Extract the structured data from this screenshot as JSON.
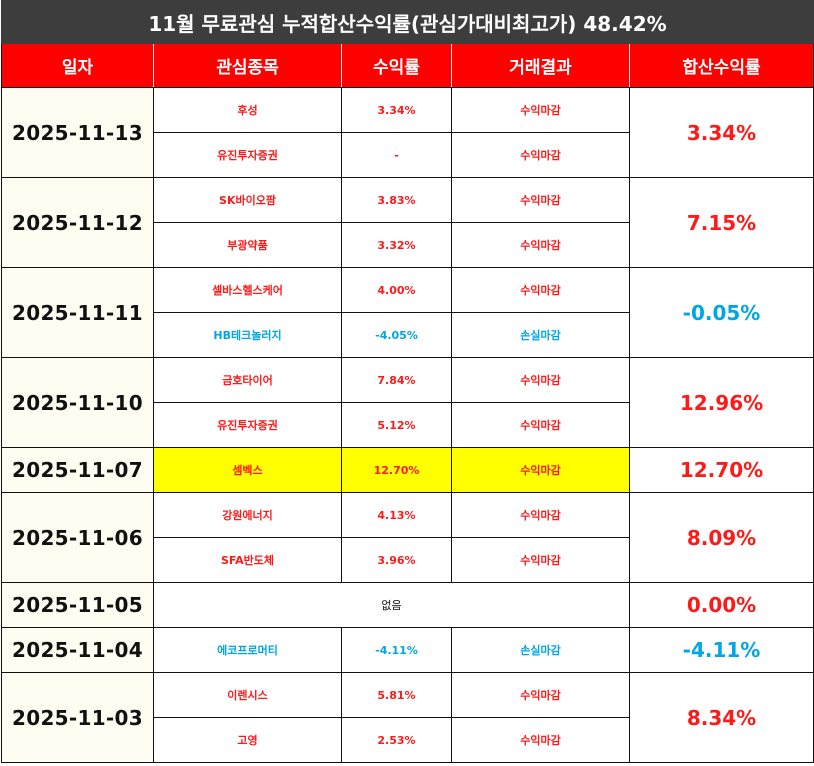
{
  "title": "11월 무료관심 누적합산수익률(관심가대비최고가) 48.42%",
  "headers": [
    "일자",
    "관심종목",
    "수익률",
    "거래결과",
    "합산수익률"
  ],
  "colors": {
    "profit": "#ff1a1a",
    "loss": "#00a6e6",
    "header": "#ff0000",
    "highlight": "#ffff00",
    "title_bg": "#3d3d3d"
  },
  "groups": [
    {
      "date": "2025-11-13",
      "total": "3.34%",
      "total_color": "red",
      "rows": [
        {
          "stock": "후성",
          "rate": "3.34%",
          "result": "수익마감",
          "color": "red"
        },
        {
          "stock": "유진투자증권",
          "rate": "-",
          "result": "수익마감",
          "color": "red"
        }
      ]
    },
    {
      "date": "2025-11-12",
      "total": "7.15%",
      "total_color": "red",
      "rows": [
        {
          "stock": "SK바이오팜",
          "rate": "3.83%",
          "result": "수익마감",
          "color": "red"
        },
        {
          "stock": "부광약품",
          "rate": "3.32%",
          "result": "수익마감",
          "color": "red"
        }
      ]
    },
    {
      "date": "2025-11-11",
      "total": "-0.05%",
      "total_color": "blue",
      "rows": [
        {
          "stock": "셀바스헬스케어",
          "rate": "4.00%",
          "result": "수익마감",
          "color": "red"
        },
        {
          "stock": "HB테크놀러지",
          "rate": "-4.05%",
          "result": "손실마감",
          "color": "blue"
        }
      ]
    },
    {
      "date": "2025-11-10",
      "total": "12.96%",
      "total_color": "red",
      "rows": [
        {
          "stock": "금호타이어",
          "rate": "7.84%",
          "result": "수익마감",
          "color": "red"
        },
        {
          "stock": "유진투자증권",
          "rate": "5.12%",
          "result": "수익마감",
          "color": "red"
        }
      ]
    },
    {
      "date": "2025-11-07",
      "total": "12.70%",
      "total_color": "red",
      "rows": [
        {
          "stock": "셈벡스",
          "rate": "12.70%",
          "result": "수익마감",
          "color": "red",
          "highlight": true
        }
      ]
    },
    {
      "date": "2025-11-06",
      "total": "8.09%",
      "total_color": "red",
      "rows": [
        {
          "stock": "강원에너지",
          "rate": "4.13%",
          "result": "수익마감",
          "color": "red"
        },
        {
          "stock": "SFA반도체",
          "rate": "3.96%",
          "result": "수익마감",
          "color": "red"
        }
      ]
    },
    {
      "date": "2025-11-05",
      "total": "0.00%",
      "total_color": "red",
      "none_label": "없음",
      "rows": []
    },
    {
      "date": "2025-11-04",
      "total": "-4.11%",
      "total_color": "blue",
      "rows": [
        {
          "stock": "에코프로머티",
          "rate": "-4.11%",
          "result": "손실마감",
          "color": "blue"
        }
      ]
    },
    {
      "date": "2025-11-03",
      "total": "8.34%",
      "total_color": "red",
      "rows": [
        {
          "stock": "이렌시스",
          "rate": "5.81%",
          "result": "수익마감",
          "color": "red"
        },
        {
          "stock": "고영",
          "rate": "2.53%",
          "result": "수익마감",
          "color": "red"
        }
      ]
    }
  ]
}
